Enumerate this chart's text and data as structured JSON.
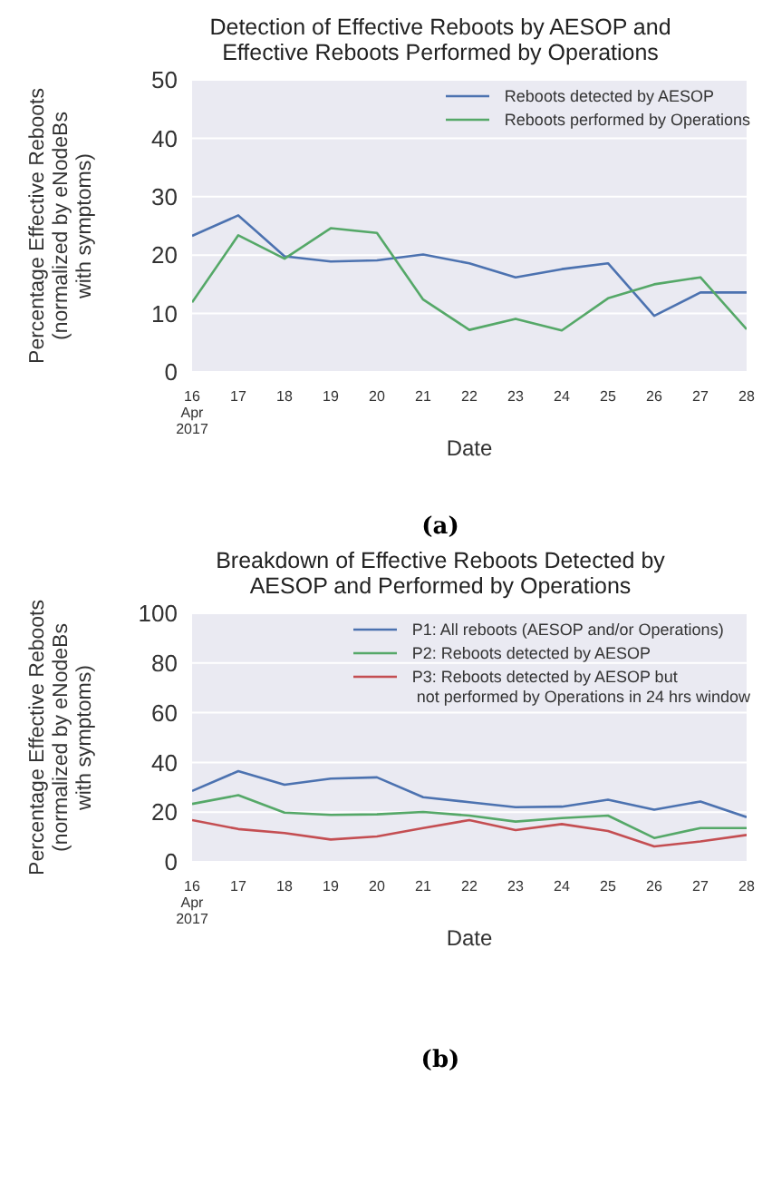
{
  "chart_data": [
    {
      "type": "line",
      "title": "Detection of Effective Reboots by AESOP and\nEffective Reboots Performed by Operations",
      "xlabel": "Date",
      "ylabel": "Percentage Effective Reboots\n(normalized by eNodeBs\nwith symptoms)",
      "x": [
        "2017-04-16",
        "2017-04-17",
        "2017-04-18",
        "2017-04-19",
        "2017-04-20",
        "2017-04-21",
        "2017-04-22",
        "2017-04-23",
        "2017-04-24",
        "2017-04-25",
        "2017-04-26",
        "2017-04-27",
        "2017-04-28"
      ],
      "series": [
        {
          "name": "Reboots detected by AESOP",
          "color": "#4c72b0",
          "values": [
            23.3,
            26.8,
            19.8,
            18.9,
            19.1,
            20.1,
            18.6,
            16.2,
            17.6,
            18.6,
            9.6,
            13.6,
            13.6
          ]
        },
        {
          "name": "Reboots performed by Operations",
          "color": "#55a868",
          "values": [
            11.9,
            23.4,
            19.4,
            24.6,
            23.8,
            12.4,
            7.2,
            9.1,
            7.1,
            12.6,
            15.0,
            16.2,
            7.3
          ]
        }
      ],
      "xlim": [
        "2017-04-16",
        "2017-04-28"
      ],
      "xticks": [
        {
          "value": "2017-04-16",
          "label": "16\nApr\n2017"
        },
        {
          "value": "2017-04-17",
          "label": "17"
        },
        {
          "value": "2017-04-18",
          "label": "18"
        },
        {
          "value": "2017-04-19",
          "label": "19"
        },
        {
          "value": "2017-04-20",
          "label": "20"
        },
        {
          "value": "2017-04-21",
          "label": "21"
        },
        {
          "value": "2017-04-22",
          "label": "22"
        },
        {
          "value": "2017-04-23",
          "label": "23"
        },
        {
          "value": "2017-04-24",
          "label": "24"
        },
        {
          "value": "2017-04-25",
          "label": "25"
        },
        {
          "value": "2017-04-26",
          "label": "26"
        },
        {
          "value": "2017-04-27",
          "label": "27"
        },
        {
          "value": "2017-04-28",
          "label": "28"
        }
      ],
      "ylim": [
        0,
        50
      ],
      "yticks": [
        0,
        10,
        20,
        30,
        40,
        50
      ],
      "grid": "y",
      "legend": "top right",
      "marker": "none",
      "line_style": "solid",
      "annotations": [
        "(a)"
      ]
    },
    {
      "type": "line",
      "title": "Breakdown of Effective Reboots Detected by\nAESOP and Performed by Operations",
      "xlabel": "Date",
      "ylabel": "Percentage Effective Reboots\n(normalized by eNodeBs\nwith symptoms)",
      "x": [
        "2017-04-16",
        "2017-04-17",
        "2017-04-18",
        "2017-04-19",
        "2017-04-20",
        "2017-04-21",
        "2017-04-22",
        "2017-04-23",
        "2017-04-24",
        "2017-04-25",
        "2017-04-26",
        "2017-04-27",
        "2017-04-28"
      ],
      "series": [
        {
          "name": "P1: All reboots (AESOP and/or Operations)",
          "color": "#4c72b0",
          "values": [
            28.5,
            36.5,
            31,
            33.5,
            34,
            26,
            24,
            22,
            22.2,
            25,
            21,
            24.3,
            18
          ]
        },
        {
          "name": "P2: Reboots detected by AESOP",
          "color": "#55a868",
          "values": [
            23.3,
            26.8,
            19.8,
            18.9,
            19.1,
            20.1,
            18.6,
            16.2,
            17.6,
            18.6,
            9.6,
            13.6,
            13.6
          ]
        },
        {
          "name": "P3: Reboots detected by AESOP but\n not performed by Operations in 24 hrs window",
          "color": "#c44e52",
          "values": [
            16.8,
            13.2,
            11.6,
            9,
            10.2,
            13.6,
            16.8,
            12.8,
            15.2,
            12.4,
            6.2,
            8.2,
            10.8
          ]
        }
      ],
      "xlim": [
        "2017-04-16",
        "2017-04-28"
      ],
      "xticks": [
        {
          "value": "2017-04-16",
          "label": "16\nApr\n2017"
        },
        {
          "value": "2017-04-17",
          "label": "17"
        },
        {
          "value": "2017-04-18",
          "label": "18"
        },
        {
          "value": "2017-04-19",
          "label": "19"
        },
        {
          "value": "2017-04-20",
          "label": "20"
        },
        {
          "value": "2017-04-21",
          "label": "21"
        },
        {
          "value": "2017-04-22",
          "label": "22"
        },
        {
          "value": "2017-04-23",
          "label": "23"
        },
        {
          "value": "2017-04-24",
          "label": "24"
        },
        {
          "value": "2017-04-25",
          "label": "25"
        },
        {
          "value": "2017-04-26",
          "label": "26"
        },
        {
          "value": "2017-04-27",
          "label": "27"
        },
        {
          "value": "2017-04-28",
          "label": "28"
        }
      ],
      "ylim": [
        0,
        100
      ],
      "yticks": [
        0,
        20,
        40,
        60,
        80,
        100
      ],
      "grid": "y",
      "legend": "top right",
      "marker": "none",
      "line_style": "solid",
      "annotations": [
        "(b)"
      ]
    }
  ]
}
